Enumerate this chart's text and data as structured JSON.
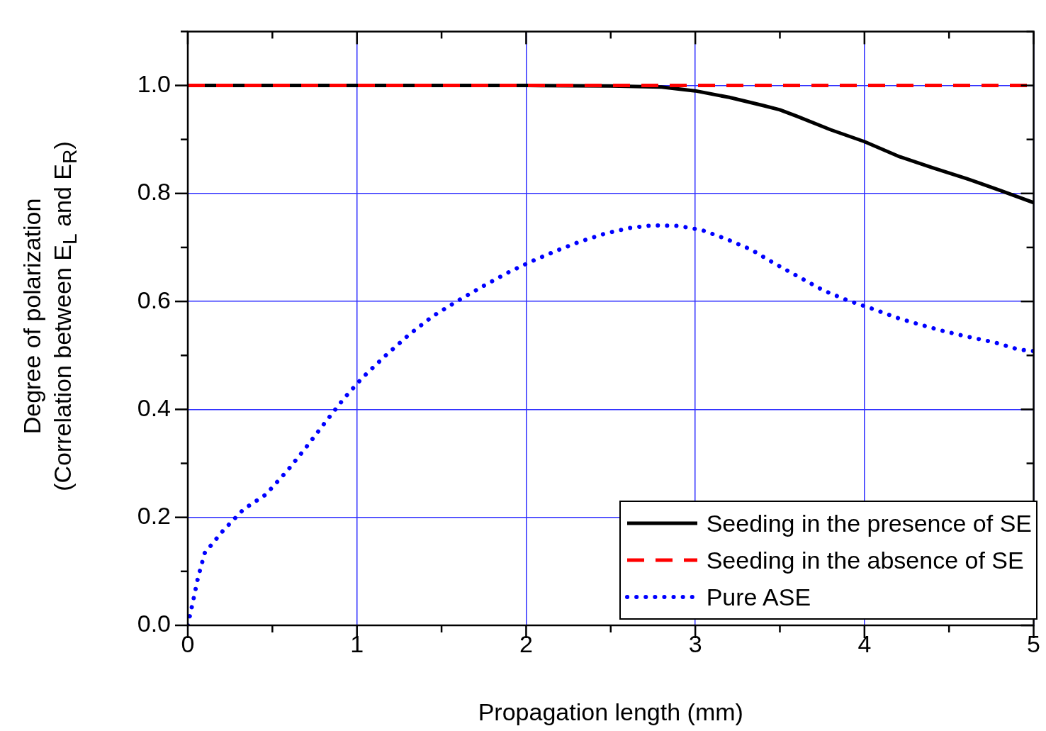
{
  "chart_data": {
    "type": "line",
    "xlabel": "Propagation length (mm)",
    "ylabel": "Degree of polarization\n(Correlation between E$_{L}$ and E$_{R}$)",
    "xlim": [
      0,
      5
    ],
    "xticks": [
      0,
      1,
      2,
      3,
      4,
      5
    ],
    "ylim": [
      0,
      1.1
    ],
    "yticks": [
      {
        "value": 0,
        "label": "0.0"
      },
      0.2,
      0.4,
      0.6,
      0.8,
      {
        "value": 1,
        "label": "1.0"
      }
    ],
    "grid": true,
    "legend": "bottom right",
    "marker": "none",
    "series": [
      {
        "name": "Seeding in the presence of SE",
        "color": "#000000",
        "line_style": "solid",
        "x": [
          0,
          0.5,
          1,
          1.5,
          2,
          2.5,
          2.8,
          3,
          3.2,
          3.4,
          3.5,
          3.6,
          3.8,
          4,
          4.2,
          4.4,
          4.6,
          4.8,
          5
        ],
        "values": [
          1,
          1,
          1,
          1,
          1,
          0.999,
          0.997,
          0.99,
          0.978,
          0.963,
          0.955,
          0.943,
          0.918,
          0.896,
          0.869,
          0.848,
          0.828,
          0.806,
          0.783
        ]
      },
      {
        "name": "Seeding in the absence of SE",
        "color": "#ff0000",
        "line_style": "dashed",
        "x": [
          0,
          5
        ],
        "values": [
          1,
          1
        ]
      },
      {
        "name": "Pure ASE",
        "color": "#0000ff",
        "line_style": "dotted",
        "x": [
          0,
          0.03,
          0.06,
          0.1,
          0.21,
          0.33,
          0.46,
          0.59,
          0.7,
          0.8,
          0.92,
          1.03,
          1.17,
          1.31,
          1.45,
          1.6,
          1.75,
          1.89,
          2.03,
          2.18,
          2.32,
          2.47,
          2.61,
          2.75,
          2.9,
          3.04,
          3.18,
          3.33,
          3.47,
          3.62,
          3.76,
          3.9,
          4.05,
          4.2,
          4.34,
          4.48,
          4.62,
          4.77,
          4.91,
          5
        ],
        "values": [
          0,
          0.043,
          0.088,
          0.134,
          0.176,
          0.215,
          0.242,
          0.287,
          0.33,
          0.371,
          0.419,
          0.458,
          0.5,
          0.539,
          0.573,
          0.602,
          0.629,
          0.653,
          0.674,
          0.694,
          0.711,
          0.726,
          0.736,
          0.741,
          0.74,
          0.732,
          0.716,
          0.696,
          0.67,
          0.644,
          0.62,
          0.602,
          0.586,
          0.569,
          0.556,
          0.544,
          0.534,
          0.524,
          0.511,
          0.508
        ]
      }
    ]
  }
}
